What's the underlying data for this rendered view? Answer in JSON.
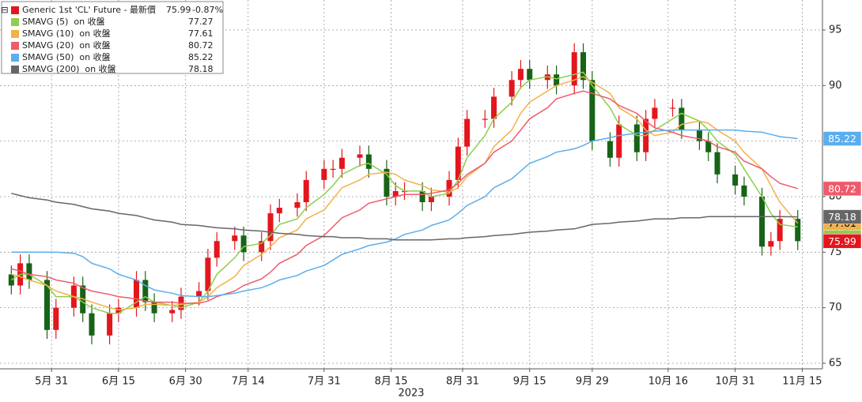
{
  "chart_data": {
    "type": "candlestick",
    "xlabel": "2023",
    "grid": true,
    "legend": "upper left",
    "x": [
      "2023-05-22",
      "2023-05-24",
      "2023-05-26",
      "2023-05-30",
      "2023-06-01",
      "2023-06-05",
      "2023-06-07",
      "2023-06-09",
      "2023-06-13",
      "2023-06-15",
      "2023-06-19",
      "2023-06-21",
      "2023-06-23",
      "2023-06-27",
      "2023-06-29",
      "2023-07-03",
      "2023-07-05",
      "2023-07-07",
      "2023-07-11",
      "2023-07-13",
      "2023-07-17",
      "2023-07-19",
      "2023-07-21",
      "2023-07-25",
      "2023-07-27",
      "2023-07-31",
      "2023-08-02",
      "2023-08-04",
      "2023-08-08",
      "2023-08-10",
      "2023-08-14",
      "2023-08-16",
      "2023-08-18",
      "2023-08-22",
      "2023-08-24",
      "2023-08-28",
      "2023-08-30",
      "2023-09-01",
      "2023-09-05",
      "2023-09-07",
      "2023-09-11",
      "2023-09-13",
      "2023-09-15",
      "2023-09-19",
      "2023-09-21",
      "2023-09-25",
      "2023-09-27",
      "2023-09-29",
      "2023-10-03",
      "2023-10-05",
      "2023-10-09",
      "2023-10-11",
      "2023-10-13",
      "2023-10-17",
      "2023-10-19",
      "2023-10-23",
      "2023-10-25",
      "2023-10-27",
      "2023-10-31",
      "2023-11-02",
      "2023-11-06",
      "2023-11-08",
      "2023-11-10",
      "2023-11-14"
    ],
    "xlim": [
      "2023-05-20",
      "2023-11-19"
    ],
    "xticks": [
      {
        "value": "2023-05-31",
        "label": "5月 31"
      },
      {
        "value": "2023-06-15",
        "label": "6月 15"
      },
      {
        "value": "2023-06-30",
        "label": "6月 30"
      },
      {
        "value": "2023-07-14",
        "label": "7月 14"
      },
      {
        "value": "2023-07-31",
        "label": "7月 31"
      },
      {
        "value": "2023-08-15",
        "label": "8月 15"
      },
      {
        "value": "2023-08-31",
        "label": "8月 31"
      },
      {
        "value": "2023-09-15",
        "label": "9月 15"
      },
      {
        "value": "2023-09-29",
        "label": "9月 29"
      },
      {
        "value": "2023-10-16",
        "label": "10月 16"
      },
      {
        "value": "2023-10-31",
        "label": "10月 31"
      },
      {
        "value": "2023-11-15",
        "label": "11月 15"
      }
    ],
    "ylim": [
      64.5,
      97.7
    ],
    "yticks": [
      65,
      70,
      75,
      80,
      85,
      90,
      95
    ],
    "series": [
      {
        "name": "Generic 1st 'CL' Future - 最新價",
        "type": "candlestick",
        "color": "#e3161d",
        "up_color": "#e3161d",
        "down_color": "#176317",
        "last": 75.99,
        "change": "-0.87%",
        "open": [
          73,
          72,
          74,
          72.5,
          68,
          70,
          72,
          69.5,
          67.5,
          69.5,
          70,
          72.5,
          70.5,
          69.5,
          69.8,
          71,
          71.5,
          74.5,
          76,
          76.5,
          75,
          76,
          78.5,
          79,
          79.5,
          81.5,
          82.5,
          82.5,
          83.5,
          83.8,
          82.5,
          80,
          80.5,
          80.5,
          79.5,
          80,
          81.5,
          84.5,
          87,
          87,
          89,
          90.5,
          91.5,
          90.5,
          91,
          90,
          93,
          90.5,
          85,
          83.5,
          86.5,
          84,
          87,
          88,
          88,
          86,
          85,
          84,
          82,
          81,
          80,
          75.5,
          76,
          78
        ],
        "high": [
          73.8,
          74.8,
          74.8,
          73.3,
          70.8,
          72.8,
          72.8,
          70.3,
          70.3,
          70.8,
          73.3,
          73.3,
          71.3,
          70.6,
          71.8,
          72.3,
          75.3,
          76.8,
          77.3,
          77.3,
          76.8,
          79.3,
          79.8,
          80.3,
          82.3,
          83.3,
          83.3,
          84.3,
          84.6,
          84.6,
          83.3,
          81.3,
          81.3,
          81.3,
          80.8,
          82.3,
          85.3,
          87.8,
          87.8,
          89.8,
          91.3,
          92.3,
          92.3,
          91.8,
          91.8,
          93.8,
          93.8,
          91.3,
          85.8,
          87.3,
          87.3,
          87.8,
          88.8,
          88.8,
          88.8,
          86.8,
          85.8,
          84.8,
          82.8,
          81.8,
          80.8,
          76.8,
          78.8,
          78.8
        ],
        "low": [
          71.2,
          71.2,
          71.7,
          67.2,
          67.2,
          69.2,
          68.7,
          66.7,
          66.7,
          68.7,
          69.2,
          69.7,
          68.7,
          68.7,
          69,
          70.2,
          70.7,
          73.7,
          75.2,
          74.2,
          74.2,
          75.2,
          77.7,
          78.2,
          78.7,
          80.7,
          81.7,
          81.7,
          82.7,
          81.7,
          79.2,
          79.2,
          79.7,
          78.7,
          78.7,
          79.2,
          80.7,
          83.7,
          86.2,
          86.2,
          88.2,
          89.7,
          89.7,
          89.7,
          89.2,
          89.2,
          89.7,
          84.2,
          82.7,
          82.7,
          83.2,
          83.2,
          86.2,
          87.2,
          85.2,
          84.2,
          83.2,
          81.2,
          80.2,
          79.2,
          74.7,
          74.7,
          75.2,
          75.19
        ],
        "close": [
          72,
          74,
          72.5,
          68,
          70,
          72,
          69.5,
          67.5,
          69.5,
          70,
          72.5,
          70.5,
          69.5,
          69.8,
          71,
          71.5,
          74.5,
          76,
          76.5,
          75,
          76,
          78.5,
          79,
          79.5,
          81.5,
          82.5,
          82.5,
          83.5,
          83.8,
          82.5,
          80,
          80.5,
          80.5,
          79.5,
          80,
          81.5,
          84.5,
          87,
          87,
          89,
          90.5,
          91.5,
          90.5,
          91,
          90,
          93,
          90.5,
          85,
          83.5,
          86.5,
          84,
          87,
          88,
          88,
          86,
          85,
          84,
          82,
          81,
          80,
          75.5,
          76,
          78,
          75.99
        ]
      },
      {
        "name": "SMAVG (5)  on 收盤",
        "type": "line",
        "color": "#8ccf4a",
        "last": 77.27,
        "values": [
          72.5,
          73,
          73,
          72,
          71,
          71,
          70.5,
          70,
          69.5,
          69.5,
          70.5,
          71,
          70.5,
          70.2,
          70,
          70.5,
          71.5,
          73,
          74.5,
          75.5,
          75.8,
          76.5,
          77.5,
          78,
          79,
          80.2,
          81,
          82,
          82.8,
          83,
          82,
          81,
          80.5,
          80.5,
          80,
          80.3,
          81.5,
          83.5,
          85.5,
          87,
          88.5,
          89.8,
          90.5,
          90.8,
          90.6,
          91,
          91.2,
          90,
          88,
          86.5,
          85.5,
          85.5,
          86,
          87,
          87.5,
          86.8,
          86,
          85,
          83.8,
          82.5,
          80,
          78.5,
          77.5,
          77.27
        ]
      },
      {
        "name": "SMAVG (10)  on 收盤",
        "type": "line",
        "color": "#f2b149",
        "last": 77.61,
        "values": [
          73,
          72.8,
          72.5,
          72,
          71.5,
          71,
          70.8,
          70.5,
          70,
          69.8,
          70,
          70.3,
          70.3,
          70.2,
          70.3,
          70.5,
          71,
          71.8,
          72.8,
          73.8,
          74.8,
          75.5,
          76.3,
          77,
          78,
          78.8,
          79.8,
          80.8,
          81.5,
          82,
          82.2,
          82,
          81.5,
          81,
          80.6,
          80.4,
          80.8,
          81.8,
          83,
          84.5,
          86,
          87.5,
          88.5,
          89.5,
          90,
          90.5,
          90.8,
          90.3,
          89.3,
          88,
          87,
          86,
          85.5,
          85.8,
          86.5,
          86.8,
          86.6,
          86,
          85,
          84,
          82.5,
          81,
          79.5,
          77.61
        ]
      },
      {
        "name": "SMAVG (20)  on 收盤",
        "type": "line",
        "color": "#ef5a6a",
        "last": 80.72,
        "values": [
          73.5,
          73.3,
          73,
          72.8,
          72.5,
          72.2,
          71.8,
          71.5,
          71.2,
          71,
          70.8,
          70.6,
          70.5,
          70.5,
          70.4,
          70.4,
          70.6,
          71,
          71.5,
          72,
          72.6,
          73.2,
          74,
          74.8,
          75.6,
          76.5,
          77.3,
          78.1,
          78.8,
          79.4,
          79.8,
          80,
          80.2,
          80.2,
          80.3,
          80.6,
          81.2,
          82,
          83,
          84,
          85,
          86,
          87,
          88,
          88.8,
          89.3,
          89.5,
          89.3,
          88.8,
          88.2,
          87.5,
          86.8,
          86.2,
          85.8,
          85.5,
          85.2,
          85,
          84.5,
          84,
          83.2,
          82.5,
          81.8,
          81.2,
          80.72
        ]
      },
      {
        "name": "SMAVG (50)  on 收盤",
        "type": "line",
        "color": "#5aaeee",
        "last": 85.22,
        "values": [
          75,
          75,
          75,
          75,
          75,
          74.9,
          74.6,
          74,
          73.5,
          73,
          72.5,
          72,
          71.6,
          71.3,
          71.1,
          71,
          71,
          71.1,
          71.3,
          71.5,
          71.8,
          72.1,
          72.5,
          72.9,
          73.3,
          73.8,
          74.3,
          74.8,
          75.3,
          75.6,
          75.9,
          76.2,
          76.6,
          77,
          77.4,
          77.9,
          78.5,
          79.2,
          80,
          80.8,
          81.6,
          82.3,
          83,
          83.6,
          84,
          84.3,
          84.6,
          85,
          85.3,
          85.5,
          85.7,
          85.8,
          85.9,
          86,
          86,
          86,
          86,
          86,
          86,
          85.9,
          85.8,
          85.6,
          85.4,
          85.22
        ]
      },
      {
        "name": "SMAVG (200)  on 收盤",
        "type": "line",
        "color": "#666666",
        "last": 78.18,
        "values": [
          80.3,
          80.1,
          79.9,
          79.7,
          79.5,
          79.3,
          79.1,
          78.9,
          78.7,
          78.5,
          78.3,
          78.1,
          77.9,
          77.7,
          77.5,
          77.4,
          77.3,
          77.2,
          77.1,
          77,
          76.9,
          76.8,
          76.7,
          76.6,
          76.5,
          76.4,
          76.4,
          76.3,
          76.3,
          76.2,
          76.2,
          76.1,
          76.1,
          76.1,
          76.1,
          76.2,
          76.2,
          76.3,
          76.4,
          76.5,
          76.6,
          76.7,
          76.8,
          76.9,
          77,
          77.1,
          77.3,
          77.5,
          77.6,
          77.7,
          77.8,
          77.9,
          78,
          78,
          78.1,
          78.1,
          78.2,
          78.2,
          78.2,
          78.2,
          78.2,
          78.2,
          78.2,
          78.18
        ]
      }
    ]
  }
}
